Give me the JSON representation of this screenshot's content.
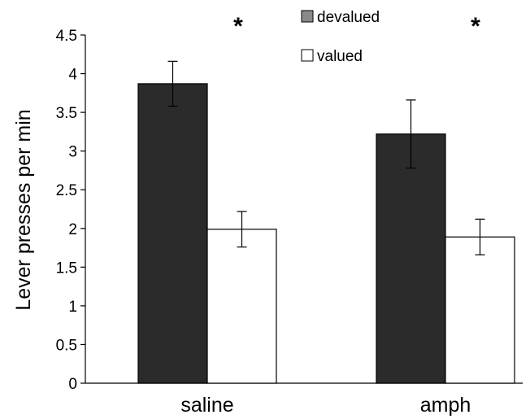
{
  "chart_data": {
    "type": "bar",
    "categories": [
      "saline",
      "amph"
    ],
    "series": [
      {
        "name": "devalued",
        "values": [
          3.87,
          3.22
        ],
        "errors": [
          0.29,
          0.44
        ],
        "color": "#2b2b2b"
      },
      {
        "name": "valued",
        "values": [
          1.99,
          1.89
        ],
        "errors": [
          0.23,
          0.23
        ],
        "color": "#ffffff"
      }
    ],
    "ylabel": "Lever presses per min",
    "ylim": [
      0,
      4.5
    ],
    "yticks": [
      0,
      0.5,
      1,
      1.5,
      2,
      2.5,
      3,
      3.5,
      4,
      4.5
    ],
    "ytick_labels": [
      "0",
      "0.5",
      "1",
      "1.5",
      "2",
      "2.5",
      "3",
      "3.5",
      "4",
      "4.5"
    ],
    "legend_position": "top-center",
    "legend_swatch_colors": [
      "#8a8a8a",
      "#ffffff"
    ],
    "annotations": [
      {
        "text": "*",
        "category": "saline"
      },
      {
        "text": "*",
        "category": "amph"
      }
    ],
    "grid": false
  }
}
